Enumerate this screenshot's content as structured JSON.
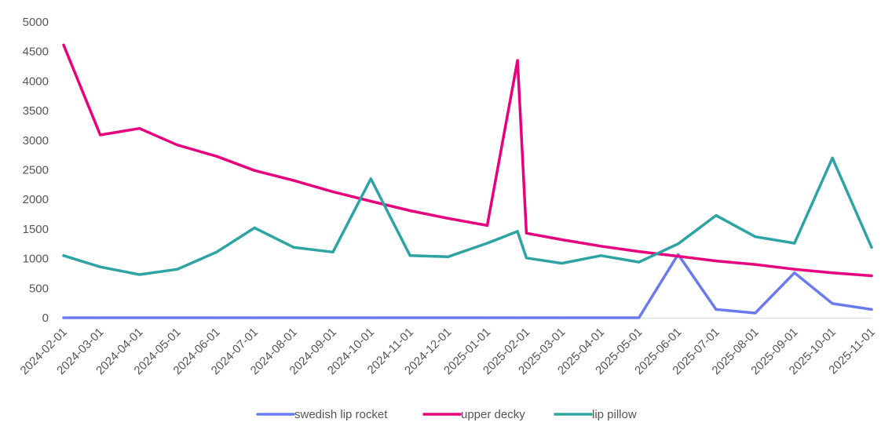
{
  "chart_data": {
    "type": "line",
    "title": "",
    "xlabel": "",
    "ylabel": "",
    "ylim": [
      0,
      5000
    ],
    "y_ticks": [
      0,
      500,
      1000,
      1500,
      2000,
      2500,
      3000,
      3500,
      4000,
      4500,
      5000
    ],
    "grid": false,
    "legend_position": "bottom",
    "x_tick_labels": [
      "2024-02-01",
      "2024-03-01",
      "2024-04-01",
      "2024-05-01",
      "2024-06-01",
      "2024-07-01",
      "2024-08-01",
      "2024-09-01",
      "2024-10-01",
      "2024-11-01",
      "2024-12-01",
      "2025-01-01",
      "2025-02-01",
      "2025-03-01",
      "2025-04-01",
      "2025-05-01",
      "2025-06-01",
      "2025-07-01",
      "2025-08-01",
      "2025-09-01",
      "2025-10-01",
      "2025-11-01"
    ],
    "x": [
      "2024-02-01",
      "2024-03-01",
      "2024-04-01",
      "2024-05-01",
      "2024-06-01",
      "2024-07-01",
      "2024-08-01",
      "2024-09-01",
      "2024-10-01",
      "2024-11-01",
      "2024-12-01",
      "2025-01-01",
      "2025-01-25",
      "2025-02-01",
      "2025-03-01",
      "2025-04-01",
      "2025-05-01",
      "2025-06-01",
      "2025-07-01",
      "2025-08-01",
      "2025-09-01",
      "2025-10-01",
      "2025-11-01"
    ],
    "series": [
      {
        "name": "swedish lip rocket",
        "color": "#6b7bef",
        "values": [
          0,
          0,
          0,
          0,
          0,
          0,
          0,
          0,
          0,
          0,
          0,
          0,
          0,
          0,
          0,
          0,
          0,
          1070,
          140,
          80,
          760,
          240,
          140
        ]
      },
      {
        "name": "upper decky",
        "color": "#e6007e",
        "values": [
          4610,
          3090,
          3200,
          2920,
          2730,
          2490,
          2320,
          2130,
          1970,
          1810,
          1680,
          1560,
          4350,
          1430,
          1320,
          1210,
          1120,
          1040,
          960,
          900,
          820,
          760,
          710
        ]
      },
      {
        "name": "lip pillow",
        "color": "#2ea3a3",
        "values": [
          1050,
          860,
          730,
          820,
          1110,
          1520,
          1190,
          1110,
          2350,
          1050,
          1030,
          1260,
          1460,
          1010,
          920,
          1050,
          940,
          1250,
          1730,
          1370,
          1260,
          2700,
          1190
        ]
      }
    ]
  }
}
